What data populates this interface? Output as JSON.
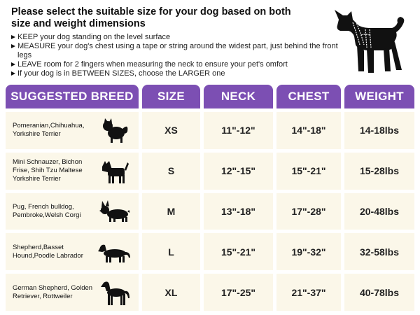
{
  "header": {
    "title": "Please select the suitable size for your dog based on both size and weight dimensions",
    "bullets": [
      "KEEP your dog standing on the level surface",
      "MEASURE your dog's chest using a tape or string around the widest part, just behind the front legs",
      "LEAVE room for 2 fingers when measuring the neck to ensure your pet's omfort",
      "If your dog is in BETWEEN SIZES, choose the LARGER one"
    ],
    "harness_icon": "dog-harness-icon"
  },
  "table": {
    "columns": [
      "SUGGESTED BREED",
      "SIZE",
      "NECK",
      "CHEST",
      "WEIGHT"
    ],
    "rows": [
      {
        "breed": "Pomeranian,Chihuahua, Yorkshire Terrier",
        "icon": "pomeranian-icon",
        "size": "XS",
        "neck": "11\"-12\"",
        "chest": "14\"-18\"",
        "weight": "14-18lbs"
      },
      {
        "breed": "Mini Schnauzer, Bichon Frise, Shih Tzu Maltese Yorkshire Terrier",
        "icon": "schnauzer-icon",
        "size": "S",
        "neck": "12\"-15\"",
        "chest": "15\"-21\"",
        "weight": "15-28lbs"
      },
      {
        "breed": "Pug, French bulldog, Pembroke,Welsh Corgi",
        "icon": "corgi-icon",
        "size": "M",
        "neck": "13\"-18\"",
        "chest": "17\"-28\"",
        "weight": "20-48lbs"
      },
      {
        "breed": "Shepherd,Basset Hound,Poodle Labrador",
        "icon": "dachshund-icon",
        "size": "L",
        "neck": "15\"-21\"",
        "chest": "19\"-32\"",
        "weight": "32-58lbs"
      },
      {
        "breed": "German Shepherd, Golden Retriever, Rottweiler",
        "icon": "great-dane-icon",
        "size": "XL",
        "neck": "17\"-25\"",
        "chest": "21\"-37\"",
        "weight": "40-78lbs"
      }
    ]
  },
  "colors": {
    "header_bg": "#7c4fb3",
    "cell_bg": "#fbf7e9"
  }
}
